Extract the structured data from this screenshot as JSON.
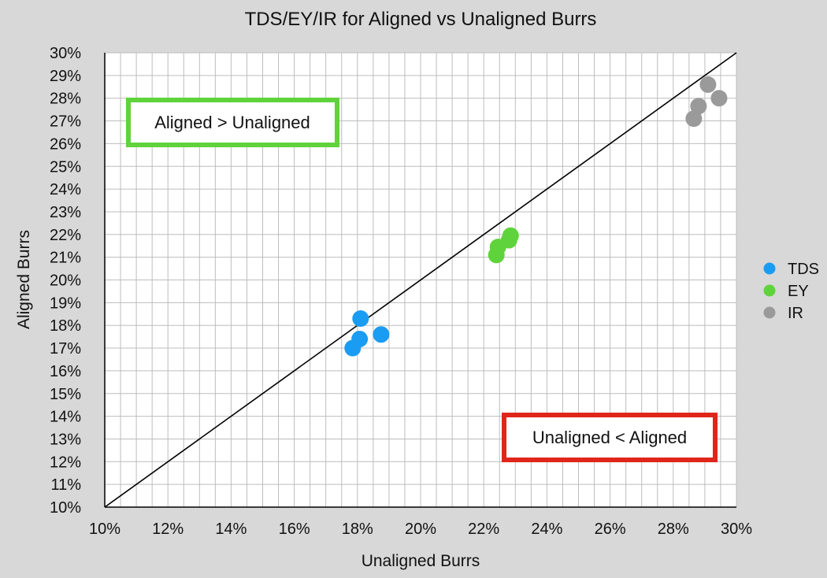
{
  "chart_data": {
    "type": "scatter",
    "title": "TDS/EY/IR for Aligned vs Unaligned Burrs",
    "xlabel": "Unaligned Burrs",
    "ylabel": "Aligned Burrs",
    "xlim": [
      10,
      30
    ],
    "ylim": [
      10,
      30
    ],
    "x_ticks": [
      "10%",
      "12%",
      "14%",
      "16%",
      "18%",
      "20%",
      "22%",
      "24%",
      "26%",
      "28%",
      "30%"
    ],
    "y_ticks": [
      "10%",
      "11%",
      "12%",
      "13%",
      "14%",
      "15%",
      "16%",
      "17%",
      "18%",
      "19%",
      "20%",
      "21%",
      "22%",
      "23%",
      "24%",
      "25%",
      "26%",
      "27%",
      "28%",
      "29%",
      "30%"
    ],
    "grid": true,
    "reference_line": {
      "from": [
        10,
        10
      ],
      "to": [
        30,
        30
      ]
    },
    "legend_position": "right",
    "series": [
      {
        "name": "TDS",
        "color": "#1a9cf2",
        "points": [
          [
            18.1,
            18.3
          ],
          [
            18.07,
            17.4
          ],
          [
            18.75,
            17.6
          ],
          [
            17.85,
            17.0
          ]
        ]
      },
      {
        "name": "EY",
        "color": "#5fd33b",
        "points": [
          [
            22.45,
            21.45
          ],
          [
            22.4,
            21.1
          ],
          [
            22.85,
            21.95
          ],
          [
            22.8,
            21.75
          ]
        ]
      },
      {
        "name": "IR",
        "color": "#9a9a9a",
        "points": [
          [
            29.1,
            28.6
          ],
          [
            29.45,
            28.0
          ],
          [
            28.8,
            27.65
          ],
          [
            28.65,
            27.1
          ]
        ]
      }
    ],
    "annotations": [
      {
        "text": "Aligned > Unaligned",
        "color": "#5fd33b"
      },
      {
        "text": "Unaligned < Aligned",
        "color": "#e0261b"
      }
    ]
  }
}
